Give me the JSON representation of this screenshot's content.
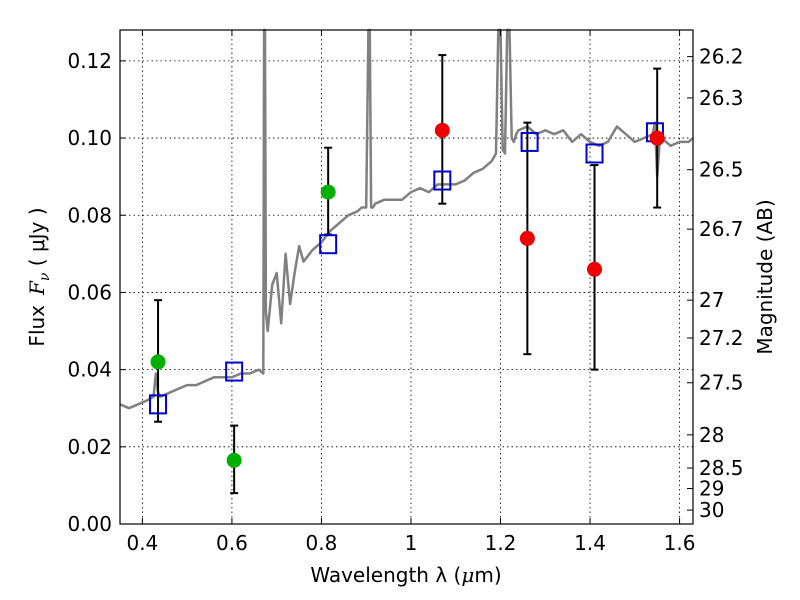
{
  "chart_data": {
    "type": "scatter",
    "xlabel_text": "Wavelength  λ (",
    "xlabel_unit": "μ",
    "xlabel_end": "m)",
    "ylabel_pre": "Flux",
    "ylabel_sym": "F",
    "ylabel_sub": "ν",
    "ylabel_post": " (  μJy )",
    "y2label": "Magnitude (AB)",
    "xlim": [
      0.35,
      1.63
    ],
    "ylim": [
      0.0,
      0.128
    ],
    "grid": true,
    "x_ticks": [
      0.4,
      0.6,
      0.8,
      1.0,
      1.2,
      1.4,
      1.6
    ],
    "x_tick_labels": [
      "0.4",
      "0.6",
      "0.8",
      "1",
      "1.2",
      "1.4",
      "1.6"
    ],
    "y_ticks": [
      0.0,
      0.02,
      0.04,
      0.06,
      0.08,
      0.1,
      0.12
    ],
    "y_tick_labels": [
      "0.00",
      "0.02",
      "0.04",
      "0.06",
      "0.08",
      "0.10",
      "0.12"
    ],
    "mag_ticks": [
      {
        "label": "26.2",
        "flux": 0.1211
      },
      {
        "label": "26.3",
        "flux": 0.1104
      },
      {
        "label": "26.5",
        "flux": 0.0918
      },
      {
        "label": "26.7",
        "flux": 0.0764
      },
      {
        "label": "27",
        "flux": 0.058
      },
      {
        "label": "27.2",
        "flux": 0.0482
      },
      {
        "label": "27.5",
        "flux": 0.0366
      },
      {
        "label": "28",
        "flux": 0.0231
      },
      {
        "label": "28.5",
        "flux": 0.0145
      },
      {
        "label": "29",
        "flux": 0.0092
      },
      {
        "label": "30",
        "flux": 0.0036
      }
    ],
    "series": [
      {
        "name": "model spectrum",
        "kind": "line",
        "color": "#808080",
        "x": [
          0.35,
          0.37,
          0.39,
          0.41,
          0.425,
          0.43,
          0.435,
          0.44,
          0.46,
          0.48,
          0.5,
          0.52,
          0.54,
          0.56,
          0.58,
          0.6,
          0.62,
          0.64,
          0.66,
          0.67,
          0.672,
          0.674,
          0.676,
          0.68,
          0.69,
          0.7,
          0.71,
          0.72,
          0.73,
          0.74,
          0.75,
          0.76,
          0.78,
          0.8,
          0.82,
          0.84,
          0.86,
          0.88,
          0.89,
          0.9,
          0.905,
          0.908,
          0.911,
          0.915,
          0.92,
          0.94,
          0.96,
          0.98,
          1.0,
          1.02,
          1.04,
          1.06,
          1.08,
          1.1,
          1.12,
          1.14,
          1.16,
          1.18,
          1.19,
          1.195,
          1.2,
          1.205,
          1.21,
          1.215,
          1.22,
          1.225,
          1.23,
          1.235,
          1.24,
          1.26,
          1.28,
          1.3,
          1.32,
          1.34,
          1.36,
          1.38,
          1.4,
          1.42,
          1.44,
          1.46,
          1.48,
          1.5,
          1.52,
          1.54,
          1.545,
          1.55,
          1.555,
          1.56,
          1.58,
          1.6,
          1.62,
          1.63
        ],
        "values": [
          0.031,
          0.03,
          0.031,
          0.032,
          0.033,
          0.039,
          0.034,
          0.033,
          0.034,
          0.035,
          0.036,
          0.036,
          0.037,
          0.038,
          0.038,
          0.038,
          0.039,
          0.039,
          0.04,
          0.039,
          0.128,
          0.128,
          0.055,
          0.05,
          0.062,
          0.065,
          0.052,
          0.07,
          0.057,
          0.065,
          0.072,
          0.068,
          0.071,
          0.073,
          0.076,
          0.078,
          0.08,
          0.081,
          0.082,
          0.082,
          0.128,
          0.128,
          0.082,
          0.082,
          0.083,
          0.084,
          0.084,
          0.084,
          0.086,
          0.087,
          0.086,
          0.088,
          0.088,
          0.088,
          0.089,
          0.091,
          0.092,
          0.094,
          0.096,
          0.128,
          0.128,
          0.097,
          0.096,
          0.128,
          0.128,
          0.1,
          0.099,
          0.101,
          0.102,
          0.103,
          0.101,
          0.102,
          0.101,
          0.102,
          0.099,
          0.101,
          0.099,
          0.098,
          0.099,
          0.103,
          0.101,
          0.099,
          0.1,
          0.101,
          0.104,
          0.09,
          0.098,
          0.1,
          0.098,
          0.099,
          0.099,
          0.1
        ]
      },
      {
        "name": "model photometry",
        "kind": "open-square",
        "color": "#0000cc",
        "x": [
          0.435,
          0.605,
          0.815,
          1.07,
          1.265,
          1.41,
          1.545
        ],
        "values": [
          0.031,
          0.0395,
          0.0725,
          0.089,
          0.099,
          0.096,
          0.1015
        ]
      },
      {
        "name": "green detections",
        "kind": "point",
        "color": "#00b000",
        "x": [
          0.435,
          0.605,
          0.815
        ],
        "values": [
          0.042,
          0.0165,
          0.086
        ],
        "err_low": [
          0.0265,
          0.008,
          0.075
        ],
        "err_high": [
          0.058,
          0.0255,
          0.0975
        ]
      },
      {
        "name": "red detections",
        "kind": "point",
        "color": "#ee0000",
        "x": [
          1.07,
          1.26,
          1.41,
          1.55
        ],
        "values": [
          0.102,
          0.074,
          0.066,
          0.1
        ],
        "err_low": [
          0.083,
          0.044,
          0.04,
          0.082
        ],
        "err_high": [
          0.1215,
          0.104,
          0.093,
          0.118
        ]
      }
    ]
  }
}
